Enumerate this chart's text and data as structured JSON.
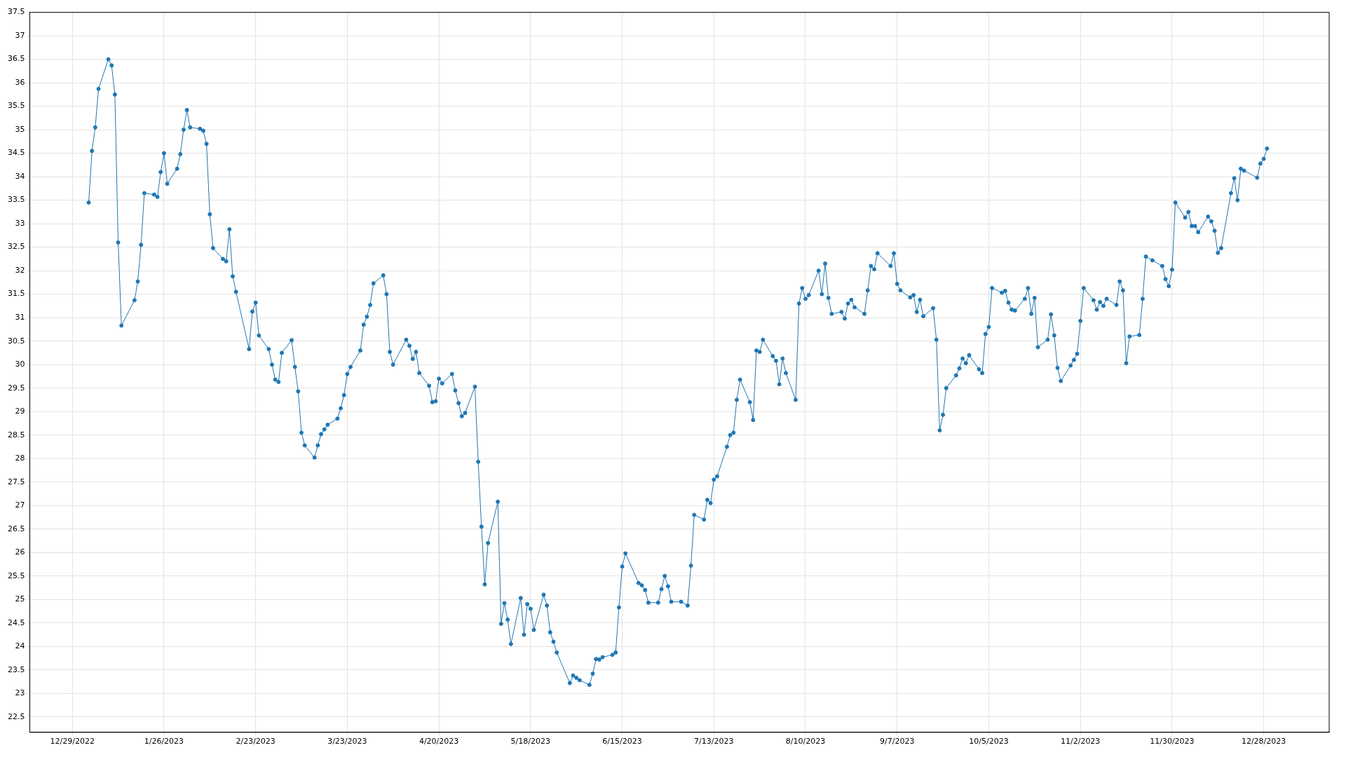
{
  "chart_data": {
    "type": "line",
    "color": "#1f77b4",
    "marker": "circle",
    "line_style": "solid",
    "grid": true,
    "xlim": [
      "2022-12-16",
      "2024-01-17"
    ],
    "ylim": [
      22.17,
      37.5
    ],
    "xticks": [
      {
        "value": "2022-12-29",
        "label": "12/29/2022"
      },
      {
        "value": "2023-01-26",
        "label": "1/26/2023"
      },
      {
        "value": "2023-02-23",
        "label": "2/23/2023"
      },
      {
        "value": "2023-03-23",
        "label": "3/23/2023"
      },
      {
        "value": "2023-04-20",
        "label": "4/20/2023"
      },
      {
        "value": "2023-05-18",
        "label": "5/18/2023"
      },
      {
        "value": "2023-06-15",
        "label": "6/15/2023"
      },
      {
        "value": "2023-07-13",
        "label": "7/13/2023"
      },
      {
        "value": "2023-08-10",
        "label": "8/10/2023"
      },
      {
        "value": "2023-09-07",
        "label": "9/7/2023"
      },
      {
        "value": "2023-10-05",
        "label": "10/5/2023"
      },
      {
        "value": "2023-11-02",
        "label": "11/2/2023"
      },
      {
        "value": "2023-11-30",
        "label": "11/30/2023"
      },
      {
        "value": "2023-12-28",
        "label": "12/28/2023"
      }
    ],
    "yticks": [
      22.5,
      23,
      23.5,
      24,
      24.5,
      25,
      25.5,
      26,
      26.5,
      27,
      27.5,
      28,
      28.5,
      29,
      29.5,
      30,
      30.5,
      31,
      31.5,
      32,
      32.5,
      33,
      33.5,
      34,
      34.5,
      35,
      35.5,
      36,
      36.5,
      37,
      37.5
    ],
    "x": [
      "2023-01-03",
      "2023-01-04",
      "2023-01-05",
      "2023-01-06",
      "2023-01-09",
      "2023-01-10",
      "2023-01-11",
      "2023-01-12",
      "2023-01-13",
      "2023-01-17",
      "2023-01-18",
      "2023-01-19",
      "2023-01-20",
      "2023-01-23",
      "2023-01-24",
      "2023-01-25",
      "2023-01-26",
      "2023-01-27",
      "2023-01-30",
      "2023-01-31",
      "2023-02-01",
      "2023-02-02",
      "2023-02-03",
      "2023-02-06",
      "2023-02-07",
      "2023-02-08",
      "2023-02-09",
      "2023-02-10",
      "2023-02-13",
      "2023-02-14",
      "2023-02-15",
      "2023-02-16",
      "2023-02-17",
      "2023-02-21",
      "2023-02-22",
      "2023-02-23",
      "2023-02-24",
      "2023-02-27",
      "2023-02-28",
      "2023-03-01",
      "2023-03-02",
      "2023-03-03",
      "2023-03-06",
      "2023-03-07",
      "2023-03-08",
      "2023-03-09",
      "2023-03-10",
      "2023-03-13",
      "2023-03-14",
      "2023-03-15",
      "2023-03-16",
      "2023-03-17",
      "2023-03-20",
      "2023-03-21",
      "2023-03-22",
      "2023-03-23",
      "2023-03-24",
      "2023-03-27",
      "2023-03-28",
      "2023-03-29",
      "2023-03-30",
      "2023-03-31",
      "2023-04-03",
      "2023-04-04",
      "2023-04-05",
      "2023-04-06",
      "2023-04-10",
      "2023-04-11",
      "2023-04-12",
      "2023-04-13",
      "2023-04-14",
      "2023-04-17",
      "2023-04-18",
      "2023-04-19",
      "2023-04-20",
      "2023-04-21",
      "2023-04-24",
      "2023-04-25",
      "2023-04-26",
      "2023-04-27",
      "2023-04-28",
      "2023-05-01",
      "2023-05-02",
      "2023-05-03",
      "2023-05-04",
      "2023-05-05",
      "2023-05-08",
      "2023-05-09",
      "2023-05-10",
      "2023-05-11",
      "2023-05-12",
      "2023-05-15",
      "2023-05-16",
      "2023-05-17",
      "2023-05-18",
      "2023-05-19",
      "2023-05-22",
      "2023-05-23",
      "2023-05-24",
      "2023-05-25",
      "2023-05-26",
      "2023-05-30",
      "2023-05-31",
      "2023-06-01",
      "2023-06-02",
      "2023-06-05",
      "2023-06-06",
      "2023-06-07",
      "2023-06-08",
      "2023-06-09",
      "2023-06-12",
      "2023-06-13",
      "2023-06-14",
      "2023-06-15",
      "2023-06-16",
      "2023-06-20",
      "2023-06-21",
      "2023-06-22",
      "2023-06-23",
      "2023-06-26",
      "2023-06-27",
      "2023-06-28",
      "2023-06-29",
      "2023-06-30",
      "2023-07-03",
      "2023-07-05",
      "2023-07-06",
      "2023-07-07",
      "2023-07-10",
      "2023-07-11",
      "2023-07-12",
      "2023-07-13",
      "2023-07-14",
      "2023-07-17",
      "2023-07-18",
      "2023-07-19",
      "2023-07-20",
      "2023-07-21",
      "2023-07-24",
      "2023-07-25",
      "2023-07-26",
      "2023-07-27",
      "2023-07-28",
      "2023-07-31",
      "2023-08-01",
      "2023-08-02",
      "2023-08-03",
      "2023-08-04",
      "2023-08-07",
      "2023-08-08",
      "2023-08-09",
      "2023-08-10",
      "2023-08-11",
      "2023-08-14",
      "2023-08-15",
      "2023-08-16",
      "2023-08-17",
      "2023-08-18",
      "2023-08-21",
      "2023-08-22",
      "2023-08-23",
      "2023-08-24",
      "2023-08-25",
      "2023-08-28",
      "2023-08-29",
      "2023-08-30",
      "2023-08-31",
      "2023-09-01",
      "2023-09-05",
      "2023-09-06",
      "2023-09-07",
      "2023-09-08",
      "2023-09-11",
      "2023-09-12",
      "2023-09-13",
      "2023-09-14",
      "2023-09-15",
      "2023-09-18",
      "2023-09-19",
      "2023-09-20",
      "2023-09-21",
      "2023-09-22",
      "2023-09-25",
      "2023-09-26",
      "2023-09-27",
      "2023-09-28",
      "2023-09-29",
      "2023-10-02",
      "2023-10-03",
      "2023-10-04",
      "2023-10-05",
      "2023-10-06",
      "2023-10-09",
      "2023-10-10",
      "2023-10-11",
      "2023-10-12",
      "2023-10-13",
      "2023-10-16",
      "2023-10-17",
      "2023-10-18",
      "2023-10-19",
      "2023-10-20",
      "2023-10-23",
      "2023-10-24",
      "2023-10-25",
      "2023-10-26",
      "2023-10-27",
      "2023-10-30",
      "2023-10-31",
      "2023-11-01",
      "2023-11-02",
      "2023-11-03",
      "2023-11-06",
      "2023-11-07",
      "2023-11-08",
      "2023-11-09",
      "2023-11-10",
      "2023-11-13",
      "2023-11-14",
      "2023-11-15",
      "2023-11-16",
      "2023-11-17",
      "2023-11-20",
      "2023-11-21",
      "2023-11-22",
      "2023-11-24",
      "2023-11-27",
      "2023-11-28",
      "2023-11-29",
      "2023-11-30",
      "2023-12-01",
      "2023-12-04",
      "2023-12-05",
      "2023-12-06",
      "2023-12-07",
      "2023-12-08",
      "2023-12-11",
      "2023-12-12",
      "2023-12-13",
      "2023-12-14",
      "2023-12-15",
      "2023-12-18",
      "2023-12-19",
      "2023-12-20",
      "2023-12-21",
      "2023-12-22",
      "2023-12-26",
      "2023-12-27",
      "2023-12-28",
      "2023-12-29"
    ],
    "values": [
      33.45,
      34.55,
      35.05,
      35.87,
      36.5,
      36.37,
      35.75,
      32.6,
      30.83,
      31.37,
      31.77,
      32.55,
      33.65,
      33.62,
      33.57,
      34.1,
      34.5,
      33.85,
      34.17,
      34.48,
      35.0,
      35.42,
      35.05,
      35.02,
      34.98,
      34.7,
      33.2,
      32.48,
      32.25,
      32.2,
      32.88,
      31.88,
      31.55,
      30.33,
      31.13,
      31.32,
      30.62,
      30.33,
      30.0,
      29.68,
      29.63,
      30.25,
      30.52,
      29.95,
      29.43,
      28.55,
      28.28,
      28.02,
      28.28,
      28.52,
      28.62,
      28.72,
      28.85,
      29.07,
      29.35,
      29.8,
      29.95,
      30.3,
      30.85,
      31.02,
      31.27,
      31.73,
      31.9,
      31.5,
      30.27,
      30.0,
      30.53,
      30.4,
      30.12,
      30.27,
      29.82,
      29.55,
      29.2,
      29.22,
      29.7,
      29.6,
      29.8,
      29.45,
      29.18,
      28.9,
      28.97,
      29.53,
      27.93,
      26.55,
      25.32,
      26.2,
      27.08,
      24.48,
      24.92,
      24.57,
      24.05,
      25.03,
      24.25,
      24.9,
      24.8,
      24.35,
      25.1,
      24.87,
      24.3,
      24.1,
      23.87,
      23.22,
      23.38,
      23.33,
      23.28,
      23.18,
      23.42,
      23.73,
      23.72,
      23.77,
      23.82,
      23.87,
      24.83,
      25.7,
      25.98,
      25.35,
      25.3,
      25.2,
      24.93,
      24.93,
      25.22,
      25.5,
      25.28,
      24.95,
      24.95,
      24.87,
      25.72,
      26.8,
      26.7,
      27.12,
      27.05,
      27.55,
      27.62,
      28.25,
      28.5,
      28.55,
      29.25,
      29.68,
      29.2,
      28.82,
      30.3,
      30.27,
      30.53,
      30.18,
      30.08,
      29.58,
      30.13,
      29.82,
      29.25,
      31.3,
      31.63,
      31.4,
      31.48,
      32.0,
      31.5,
      32.15,
      31.42,
      31.08,
      31.12,
      30.98,
      31.3,
      31.38,
      31.22,
      31.08,
      31.58,
      32.1,
      32.03,
      32.37,
      32.1,
      32.37,
      31.72,
      31.58,
      31.43,
      31.48,
      31.12,
      31.38,
      31.03,
      31.2,
      30.53,
      28.6,
      28.93,
      29.5,
      29.77,
      29.92,
      30.13,
      30.03,
      30.2,
      29.9,
      29.82,
      30.65,
      30.8,
      31.63,
      31.53,
      31.57,
      31.32,
      31.17,
      31.15,
      31.4,
      31.63,
      31.08,
      31.42,
      30.37,
      30.53,
      31.07,
      30.62,
      29.93,
      29.65,
      29.98,
      30.1,
      30.23,
      30.93,
      31.63,
      31.37,
      31.17,
      31.33,
      31.25,
      31.4,
      31.27,
      31.77,
      31.58,
      30.03,
      30.6,
      30.63,
      31.4,
      32.3,
      32.22,
      32.1,
      31.82,
      31.67,
      32.02,
      33.45,
      33.13,
      33.25,
      32.95,
      32.95,
      32.82,
      33.15,
      33.05,
      32.85,
      32.38,
      32.48,
      33.65,
      33.97,
      33.5,
      34.17,
      34.13,
      33.98,
      34.28,
      34.38,
      34.6
    ]
  }
}
